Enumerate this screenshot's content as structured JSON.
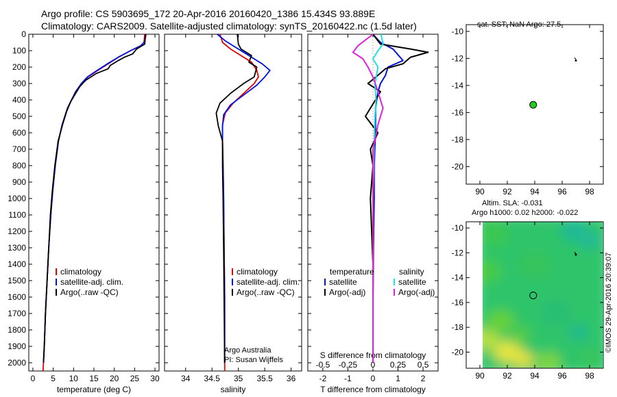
{
  "header": {
    "line1": "Argo profile: CS 5903695_172 20-Apr-2016 20160420_1386 15.434S 93.889E",
    "line2": "Climatology: CARS2009. Satellite-adjusted climatology: synTS_20160422.nc (1.5d later)"
  },
  "map_sst": {
    "title": "sat. SST: NaN Argo: 27.5"
  },
  "map_sla": {
    "title1": "Altim. SLA: -0.031",
    "title2": "Argo h1000: 0.02 h2000: -0.022"
  },
  "credit": "©IMOS 29-Apr-2016 20:39:07",
  "annotation": {
    "line1": "Argo Australia",
    "line2": "PI: Susan Wijffels"
  },
  "colors": {
    "climatology": "#e00000",
    "satellite": "#0010e0",
    "argo": "#000000",
    "sal_satellite": "#20e0e0",
    "sal_argo": "#e020e0",
    "argo_marker": "#22cc22"
  },
  "legends": {
    "temp": [
      "climatology",
      "satellite-adj. clim.",
      "Argo(..raw -QC)"
    ],
    "sal": [
      "climatology",
      "satellite-adj. clim.",
      "Argo(..raw -QC)"
    ],
    "diff_temp_title": "temperature",
    "diff_sal_title": "salinity",
    "diff_temp": [
      "satellite",
      "Argo(-adj)"
    ],
    "diff_sal": [
      "satellite",
      "Argo(-adj)"
    ]
  },
  "chart_data": [
    {
      "type": "line",
      "id": "temperature",
      "xlabel": "temperature (deg C)",
      "xlim": [
        -1,
        31
      ],
      "ylim": [
        0,
        2050
      ],
      "xticks": [
        0,
        5,
        10,
        15,
        20,
        25,
        30
      ],
      "yticks": [
        0,
        100,
        200,
        300,
        400,
        500,
        600,
        700,
        800,
        900,
        1000,
        1100,
        1200,
        1300,
        1400,
        1500,
        1600,
        1700,
        1800,
        1900,
        2000
      ],
      "series": [
        {
          "name": "climatology",
          "x": [
            27.5,
            27.3,
            26.5,
            24,
            21,
            18.5,
            16,
            13.5,
            12,
            10.5,
            9.5,
            8.5,
            7.2,
            6.3,
            5.5,
            4.9,
            4.4,
            3.9,
            3.5,
            3.1,
            2.8,
            2.6,
            2.5
          ],
          "y": [
            0,
            50,
            70,
            100,
            140,
            180,
            220,
            260,
            300,
            350,
            400,
            450,
            550,
            650,
            800,
            950,
            1100,
            1300,
            1500,
            1700,
            1900,
            2000,
            2050
          ]
        },
        {
          "name": "satellite-adj. clim.",
          "x": [
            27.8,
            27.5,
            26.5,
            24,
            21,
            18.3,
            15.8,
            13.4,
            11.9,
            10.5,
            9.5,
            8.5,
            7.2,
            6.3,
            5.5,
            4.9,
            4.4,
            3.9,
            3.5,
            3.1,
            2.8,
            2.6
          ],
          "y": [
            0,
            45,
            70,
            100,
            140,
            180,
            220,
            260,
            300,
            350,
            400,
            450,
            550,
            650,
            800,
            950,
            1100,
            1300,
            1500,
            1700,
            1900,
            2000
          ]
        },
        {
          "name": "Argo(..raw -QC)",
          "x": [
            27.6,
            27.5,
            25.5,
            24.5,
            22.5,
            21,
            19,
            18.5,
            15.5,
            13,
            11.5,
            10.5,
            9.3,
            8.3,
            7.3,
            6.2,
            5.4,
            4.8,
            4.3,
            3.9,
            3.5,
            3.1,
            2.8,
            2.6
          ],
          "y": [
            0,
            60,
            90,
            120,
            140,
            160,
            190,
            210,
            240,
            280,
            320,
            360,
            410,
            470,
            550,
            650,
            800,
            950,
            1100,
            1300,
            1500,
            1700,
            1900,
            2000
          ]
        }
      ]
    },
    {
      "type": "line",
      "id": "salinity",
      "xlabel": "salinity",
      "xlim": [
        33.6,
        36.2
      ],
      "ylim": [
        0,
        2050
      ],
      "xticks": [
        34,
        34.5,
        35,
        35.5,
        36
      ],
      "series": [
        {
          "name": "climatology",
          "x": [
            34.65,
            34.7,
            34.85,
            35.05,
            35.25,
            35.35,
            35.38,
            35.3,
            35.1,
            34.9,
            34.75,
            34.7,
            34.7,
            34.71,
            34.72,
            34.73,
            34.74,
            34.74,
            34.74,
            34.74
          ],
          "y": [
            0,
            50,
            90,
            130,
            170,
            220,
            260,
            300,
            360,
            420,
            480,
            550,
            650,
            800,
            1000,
            1300,
            1600,
            1800,
            2000,
            2050
          ]
        },
        {
          "name": "satellite-adj. clim.",
          "x": [
            34.6,
            34.75,
            34.95,
            35.2,
            35.45,
            35.6,
            35.5,
            35.35,
            35.1,
            34.85,
            34.72,
            34.7,
            34.7,
            34.71,
            34.72,
            34.73,
            34.74,
            34.74,
            34.74
          ],
          "y": [
            0,
            40,
            80,
            130,
            180,
            220,
            260,
            310,
            370,
            430,
            490,
            560,
            650,
            800,
            1000,
            1300,
            1600,
            1800,
            2000
          ]
        },
        {
          "name": "Argo(..raw -QC)",
          "x": [
            34.98,
            35.0,
            35.05,
            35.25,
            35.2,
            35.35,
            35.3,
            35.1,
            34.85,
            34.65,
            34.58,
            34.62,
            34.7,
            34.7,
            34.71,
            34.72,
            34.73,
            34.74
          ],
          "y": [
            0,
            60,
            90,
            130,
            170,
            200,
            260,
            300,
            360,
            420,
            480,
            560,
            650,
            800,
            1000,
            1300,
            1600,
            2000
          ]
        }
      ]
    },
    {
      "type": "line",
      "id": "difference",
      "xlabel": "T difference from climatology",
      "x2label": "S difference from climatology",
      "xlim": [
        -2.6,
        2.6
      ],
      "ylim": [
        0,
        2050
      ],
      "xticks": [
        -2,
        -1,
        0,
        1,
        2
      ],
      "x2ticks": [
        -0.5,
        -0.25,
        0,
        0.25,
        0.5
      ],
      "x2tick_labels": [
        "-0.5",
        "-0.25",
        "0",
        "0.25",
        "0.5"
      ],
      "x2scale": 4,
      "series": [
        {
          "name": "T satellite",
          "x": [
            0.0,
            0.3,
            0.8,
            1.2,
            0.6,
            0.5,
            0.3,
            0.2,
            0.1,
            0.1,
            0.05,
            0.05,
            0.02,
            0.0,
            0.0
          ],
          "y": [
            0,
            50,
            90,
            160,
            200,
            250,
            300,
            350,
            450,
            600,
            800,
            1000,
            1300,
            1600,
            2000
          ]
        },
        {
          "name": "T Argo(-adj)",
          "x": [
            0.0,
            0.3,
            1.5,
            2.2,
            1.5,
            1.2,
            0.5,
            0.2,
            -0.2,
            0.3,
            -0.3,
            0.2,
            -0.1,
            0.0,
            -0.1,
            0.0,
            0.0
          ],
          "y": [
            0,
            60,
            90,
            110,
            140,
            180,
            210,
            250,
            300,
            350,
            500,
            600,
            700,
            800,
            1000,
            1400,
            2000
          ]
        },
        {
          "name": "S satellite",
          "x": [
            0.08,
            0.1,
            0.05,
            0.0,
            0.05,
            0.02,
            0.03,
            0.02,
            0.01,
            0.0,
            0.0,
            0.0
          ],
          "y": [
            0,
            60,
            100,
            150,
            200,
            300,
            400,
            500,
            700,
            1000,
            1400,
            2000
          ]
        },
        {
          "name": "S Argo(-adj)",
          "x": [
            0.0,
            -0.15,
            -0.2,
            -0.1,
            -0.05,
            0.0,
            0.05,
            0.1,
            0.05,
            0.0,
            0.0,
            0.0,
            0.0
          ],
          "y": [
            0,
            70,
            110,
            150,
            200,
            260,
            350,
            450,
            550,
            700,
            1000,
            1400,
            2000
          ]
        }
      ]
    },
    {
      "type": "scatter",
      "id": "sst_map",
      "xlim": [
        89,
        99
      ],
      "ylim": [
        -21.3,
        -9.5
      ],
      "xticks": [
        90,
        92,
        94,
        96,
        98
      ],
      "yticks": [
        -10,
        -12,
        -14,
        -16,
        -18,
        -20
      ],
      "points": [
        {
          "x": 93.889,
          "y": -15.434
        }
      ]
    },
    {
      "type": "heatmap",
      "id": "sla_map",
      "xlim": [
        89,
        99
      ],
      "ylim": [
        -21.3,
        -9.5
      ],
      "xticks": [
        90,
        92,
        94,
        96,
        98
      ],
      "yticks": [
        -10,
        -12,
        -14,
        -16,
        -18,
        -20
      ],
      "points": [
        {
          "x": 93.889,
          "y": -15.434
        }
      ]
    }
  ]
}
